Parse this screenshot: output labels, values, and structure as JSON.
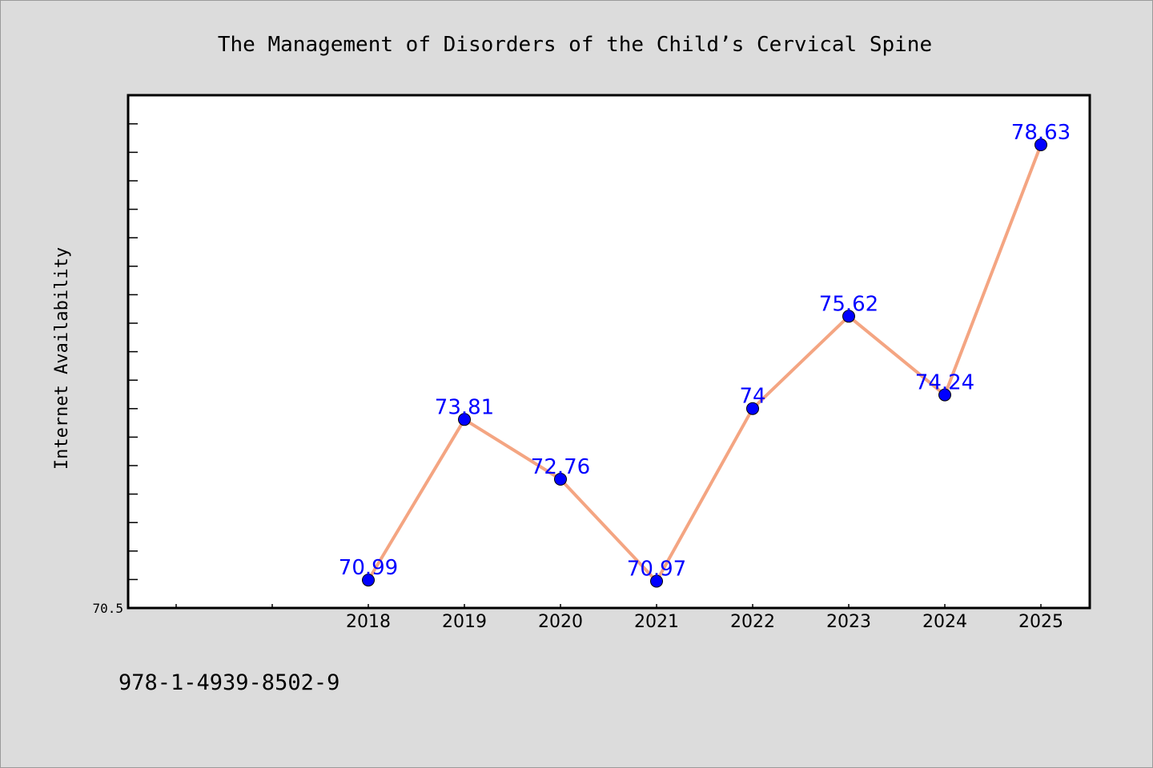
{
  "chart_data": {
    "type": "line",
    "title": "The Management of Disorders of the Child’s Cervical Spine",
    "xlabel": "",
    "ylabel": "Internet Availability",
    "categories": [
      "2018",
      "2019",
      "2020",
      "2021",
      "2022",
      "2023",
      "2024",
      "2025"
    ],
    "series": [
      {
        "values": [
          70.99,
          73.81,
          72.76,
          70.97,
          74,
          75.62,
          74.24,
          78.63
        ]
      }
    ],
    "data_labels": [
      "70.99",
      "73.81",
      "72.76",
      "70.97",
      "74",
      "75.62",
      "74.24",
      "78.63"
    ],
    "ylim": [
      70.5,
      79.5
    ],
    "y_tick_labels": [
      "70.5"
    ],
    "grid": false,
    "legend": "none",
    "colors": {
      "line": "#f4a582",
      "marker": "#0000ff",
      "data_label": "#0000ff",
      "plot_background": "#ffffff",
      "figure_background": "#dcdcdc"
    }
  },
  "footer": {
    "isbn": "978-1-4939-8502-9"
  }
}
